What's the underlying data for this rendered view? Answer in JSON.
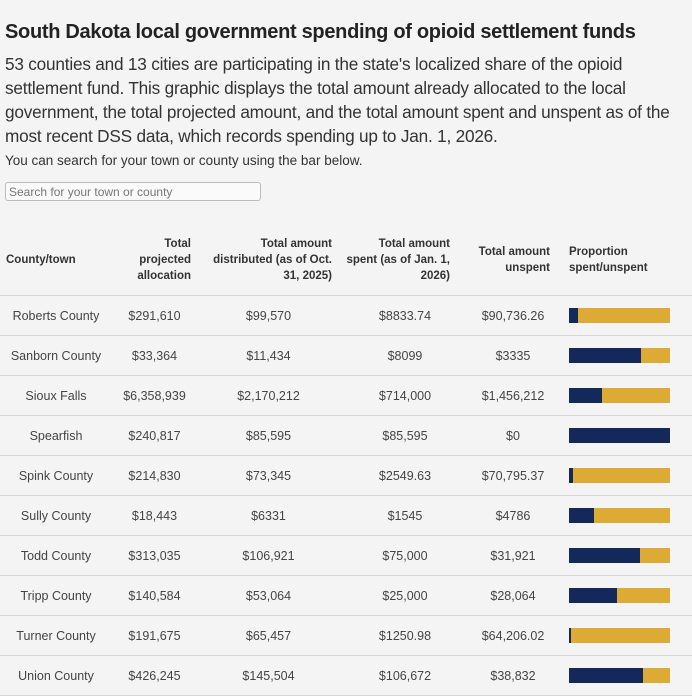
{
  "title": "South Dakota local government spending of opioid settlement funds",
  "description": "53 counties and 13 cities are participating in the state's localized share of the opioid settlement fund. This graphic displays the total amount already allocated to the local government, the total projected amount, and the total amount spent and unspent as of the most recent DSS data, which records spending up to Jan. 1, 2026.",
  "hint": "You can search for your town or county using the bar below.",
  "search": {
    "placeholder": "Search for your town or county",
    "value": ""
  },
  "colors": {
    "spent": "#13295a",
    "unspent": "#ddab35"
  },
  "table": {
    "headers": [
      "County/town",
      "Total projected allocation",
      "Total amount distributed (as of Oct. 31, 2025)",
      "Total amount spent (as of Jan. 1, 2026)",
      "Total amount unspent",
      "Proportion spent/unspent"
    ],
    "rows": [
      {
        "name": "Roberts County",
        "projected": "$291,610",
        "distributed": "$99,570",
        "spent": "$8833.74",
        "unspent": "$90,736.26",
        "spent_fraction": 0.089
      },
      {
        "name": "Sanborn County",
        "projected": "$33,364",
        "distributed": "$11,434",
        "spent": "$8099",
        "unspent": "$3335",
        "spent_fraction": 0.708
      },
      {
        "name": "Sioux Falls",
        "projected": "$6,358,939",
        "distributed": "$2,170,212",
        "spent": "$714,000",
        "unspent": "$1,456,212",
        "spent_fraction": 0.329
      },
      {
        "name": "Spearfish",
        "projected": "$240,817",
        "distributed": "$85,595",
        "spent": "$85,595",
        "unspent": "$0",
        "spent_fraction": 1.0
      },
      {
        "name": "Spink County",
        "projected": "$214,830",
        "distributed": "$73,345",
        "spent": "$2549.63",
        "unspent": "$70,795.37",
        "spent_fraction": 0.035
      },
      {
        "name": "Sully County",
        "projected": "$18,443",
        "distributed": "$6331",
        "spent": "$1545",
        "unspent": "$4786",
        "spent_fraction": 0.244
      },
      {
        "name": "Todd County",
        "projected": "$313,035",
        "distributed": "$106,921",
        "spent": "$75,000",
        "unspent": "$31,921",
        "spent_fraction": 0.701
      },
      {
        "name": "Tripp County",
        "projected": "$140,584",
        "distributed": "$53,064",
        "spent": "$25,000",
        "unspent": "$28,064",
        "spent_fraction": 0.471
      },
      {
        "name": "Turner County",
        "projected": "$191,675",
        "distributed": "$65,457",
        "spent": "$1250.98",
        "unspent": "$64,206.02",
        "spent_fraction": 0.019
      },
      {
        "name": "Union County",
        "projected": "$426,245",
        "distributed": "$145,504",
        "spent": "$106,672",
        "unspent": "$38,832",
        "spent_fraction": 0.733
      }
    ]
  }
}
